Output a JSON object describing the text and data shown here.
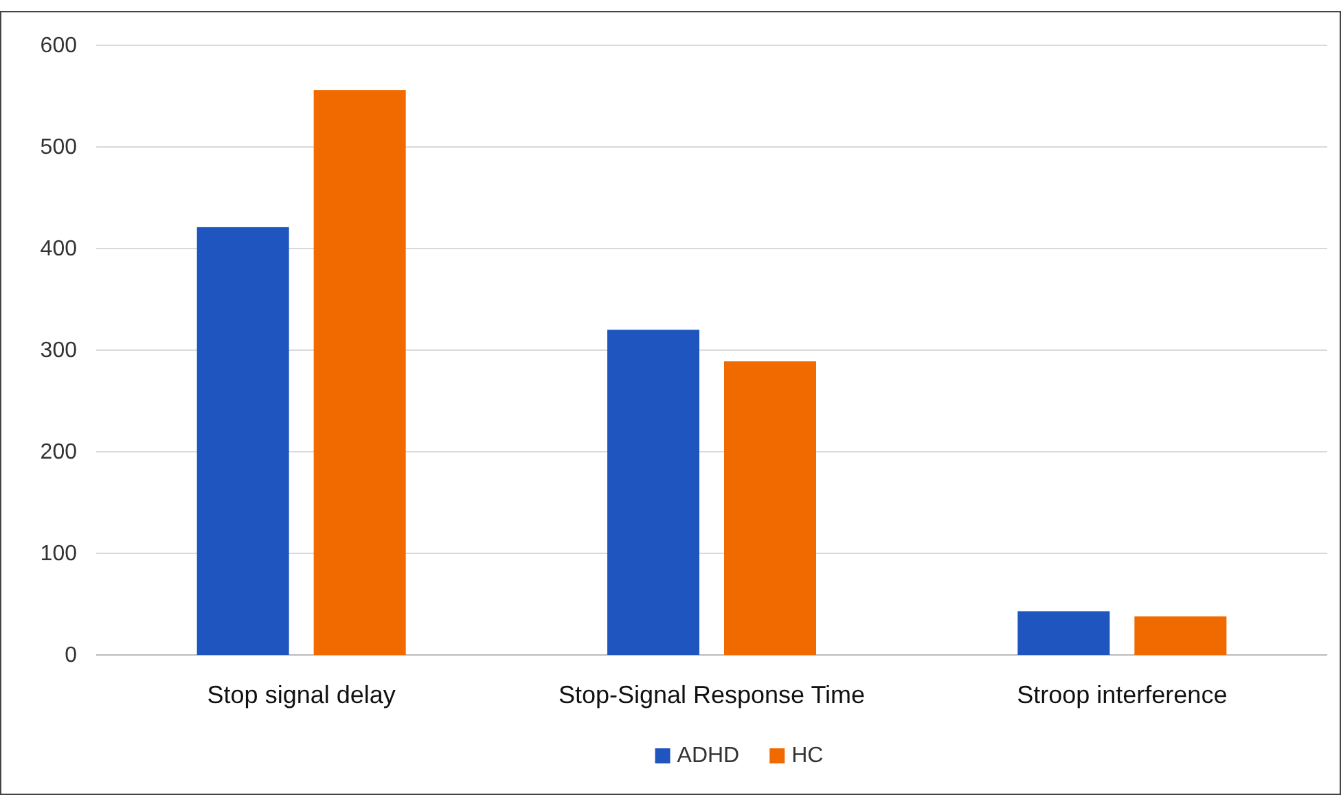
{
  "chart_data": {
    "type": "bar",
    "categories": [
      "Stop signal delay",
      "Stop-Signal Response Time",
      "Stroop interference"
    ],
    "series": [
      {
        "name": "ADHD",
        "color": "#1f55bf",
        "values": [
          421,
          320,
          43
        ]
      },
      {
        "name": "HC",
        "color": "#f06a00",
        "values": [
          556,
          289,
          38
        ]
      }
    ],
    "ylim": [
      0,
      600
    ],
    "yticks": [
      0,
      100,
      200,
      300,
      400,
      500,
      600
    ],
    "grid": "y",
    "legend": "bottom"
  }
}
